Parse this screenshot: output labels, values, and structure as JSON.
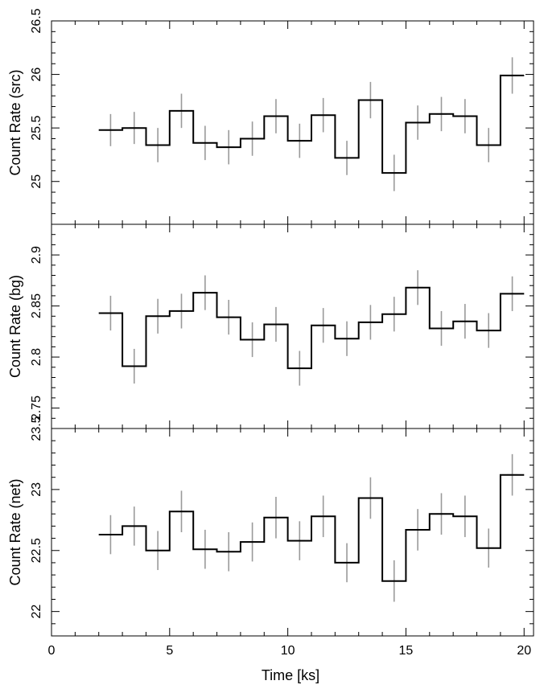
{
  "chart_data": [
    {
      "type": "step",
      "ylabel": "Count Rate (src)",
      "ylim": [
        24.6,
        26.5
      ],
      "yticks": [
        25,
        25.5,
        26,
        26.5
      ],
      "ytick_labels": [
        "25",
        "25.5",
        "26",
        "26.5"
      ],
      "x": [
        2.5,
        3.5,
        4.5,
        5.5,
        6.5,
        7.5,
        8.5,
        9.5,
        10.5,
        11.5,
        12.5,
        13.5,
        14.5,
        15.5,
        16.5,
        17.5,
        18.5,
        19.5
      ],
      "values": [
        25.48,
        25.5,
        25.34,
        25.66,
        25.36,
        25.32,
        25.4,
        25.61,
        25.38,
        25.62,
        25.22,
        25.76,
        25.08,
        25.55,
        25.63,
        25.61,
        25.34,
        25.99
      ],
      "errors": [
        0.15,
        0.15,
        0.16,
        0.16,
        0.16,
        0.16,
        0.16,
        0.16,
        0.16,
        0.16,
        0.16,
        0.17,
        0.17,
        0.16,
        0.16,
        0.16,
        0.16,
        0.17
      ]
    },
    {
      "type": "step",
      "ylabel": "Count Rate (bg)",
      "ylim": [
        2.73,
        2.93
      ],
      "yticks": [
        2.75,
        2.8,
        2.85,
        2.9
      ],
      "ytick_labels": [
        "2.75",
        "2.8",
        "2.85",
        "2.9"
      ],
      "x": [
        2.5,
        3.5,
        4.5,
        5.5,
        6.5,
        7.5,
        8.5,
        9.5,
        10.5,
        11.5,
        12.5,
        13.5,
        14.5,
        15.5,
        16.5,
        17.5,
        18.5,
        19.5
      ],
      "values": [
        2.843,
        2.791,
        2.84,
        2.845,
        2.863,
        2.839,
        2.817,
        2.832,
        2.789,
        2.831,
        2.818,
        2.834,
        2.842,
        2.868,
        2.828,
        2.835,
        2.826,
        2.862
      ],
      "errors": [
        0.017,
        0.017,
        0.017,
        0.017,
        0.017,
        0.017,
        0.017,
        0.017,
        0.017,
        0.017,
        0.017,
        0.017,
        0.017,
        0.017,
        0.017,
        0.017,
        0.017,
        0.017
      ]
    },
    {
      "type": "step",
      "ylabel": "Count Rate (net)",
      "xlabel": "Time [ks]",
      "xlim": [
        0,
        20.4
      ],
      "xticks": [
        0,
        5,
        10,
        15,
        20
      ],
      "xtick_labels": [
        "0",
        "5",
        "10",
        "15",
        "20"
      ],
      "ylim": [
        21.8,
        23.5
      ],
      "yticks": [
        22,
        22.5,
        23,
        23.5
      ],
      "ytick_labels": [
        "22",
        "22.5",
        "23",
        "23.5"
      ],
      "x": [
        2.5,
        3.5,
        4.5,
        5.5,
        6.5,
        7.5,
        8.5,
        9.5,
        10.5,
        11.5,
        12.5,
        13.5,
        14.5,
        15.5,
        16.5,
        17.5,
        18.5,
        19.5
      ],
      "values": [
        22.63,
        22.7,
        22.5,
        22.82,
        22.51,
        22.49,
        22.57,
        22.77,
        22.58,
        22.78,
        22.4,
        22.93,
        22.25,
        22.67,
        22.8,
        22.78,
        22.52,
        23.12
      ],
      "errors": [
        0.16,
        0.16,
        0.16,
        0.17,
        0.16,
        0.16,
        0.16,
        0.17,
        0.16,
        0.17,
        0.16,
        0.17,
        0.17,
        0.17,
        0.17,
        0.17,
        0.16,
        0.17
      ]
    }
  ]
}
